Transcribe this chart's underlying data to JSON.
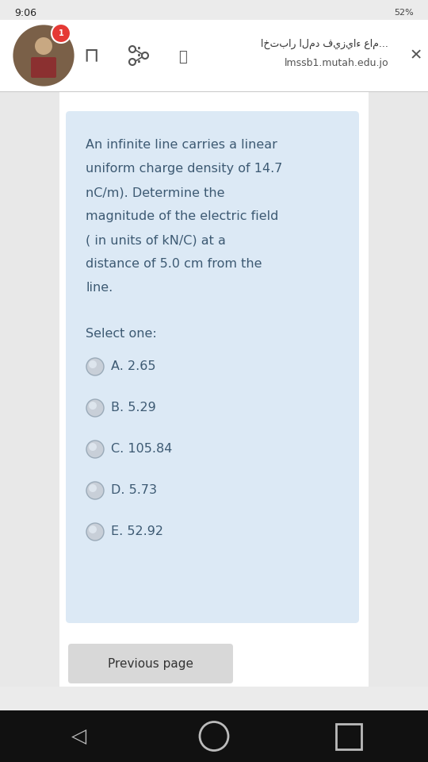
{
  "bg_color": "#ebebeb",
  "status_bar_bg": "#ebebeb",
  "status_bar_text": "9:06",
  "header_bg": "#ffffff",
  "header_title": "اختبار المد فيزياء عام...",
  "header_url": "lmssb1.mutah.edu.jo",
  "card_bg": "#dce9f5",
  "question_text_lines": [
    "An infinite line carries a linear",
    "uniform charge density of 14.7",
    "nC/m). Determine the",
    "magnitude of the electric field",
    "( in units of kN/C) at a",
    "distance of 5.0 cm from the",
    "line."
  ],
  "select_label": "Select one:",
  "options": [
    "A. 2.65",
    "B. 5.29",
    "C. 105.84",
    "D. 5.73",
    "E. 52.92"
  ],
  "question_font_size": 11.5,
  "option_font_size": 11.5,
  "text_color": "#3d5a73",
  "bottom_bar_bg": "#111111",
  "prev_btn_text": "Previous page",
  "prev_btn_bg": "#d8d8d8",
  "nav_icon_color": "#bbbbbb",
  "avatar_color": "#7a6048",
  "badge_color": "#e53935"
}
